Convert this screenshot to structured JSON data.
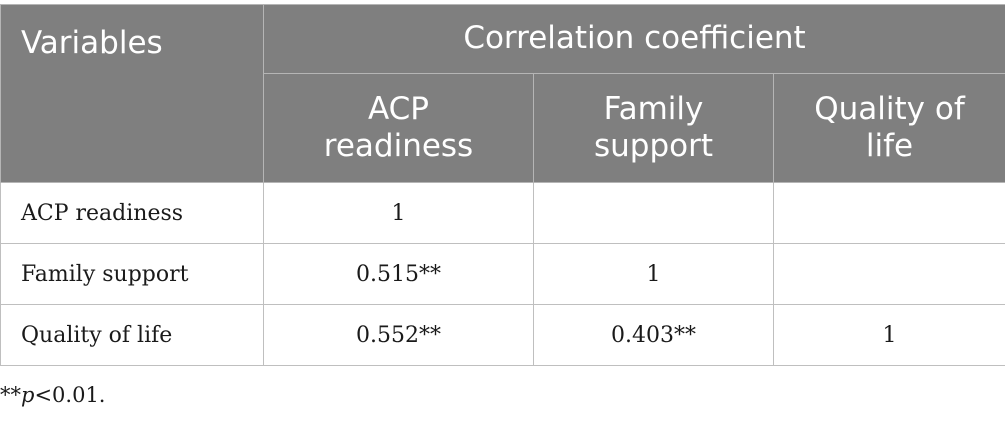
{
  "table": {
    "header": {
      "variables_label": "Variables",
      "group_label": "Correlation coefficient",
      "columns": [
        {
          "line1": "ACP",
          "line2": "readiness"
        },
        {
          "line1": "Family",
          "line2": "support"
        },
        {
          "line1": "Quality of",
          "line2": "life"
        }
      ]
    },
    "rows": [
      {
        "label": "ACP readiness",
        "cells": [
          "1",
          "",
          ""
        ]
      },
      {
        "label": "Family support",
        "cells": [
          "0.515**",
          "1",
          ""
        ]
      },
      {
        "label": "Quality of life",
        "cells": [
          "0.552**",
          "0.403**",
          "1"
        ]
      }
    ]
  },
  "footnote": {
    "prefix": "**",
    "p_symbol": "p",
    "suffix": "<0.01."
  },
  "colors": {
    "header_background": "#7f7f7f",
    "header_text": "#ffffff",
    "body_text": "#1a1a1a",
    "border": "#bfbfbf"
  }
}
